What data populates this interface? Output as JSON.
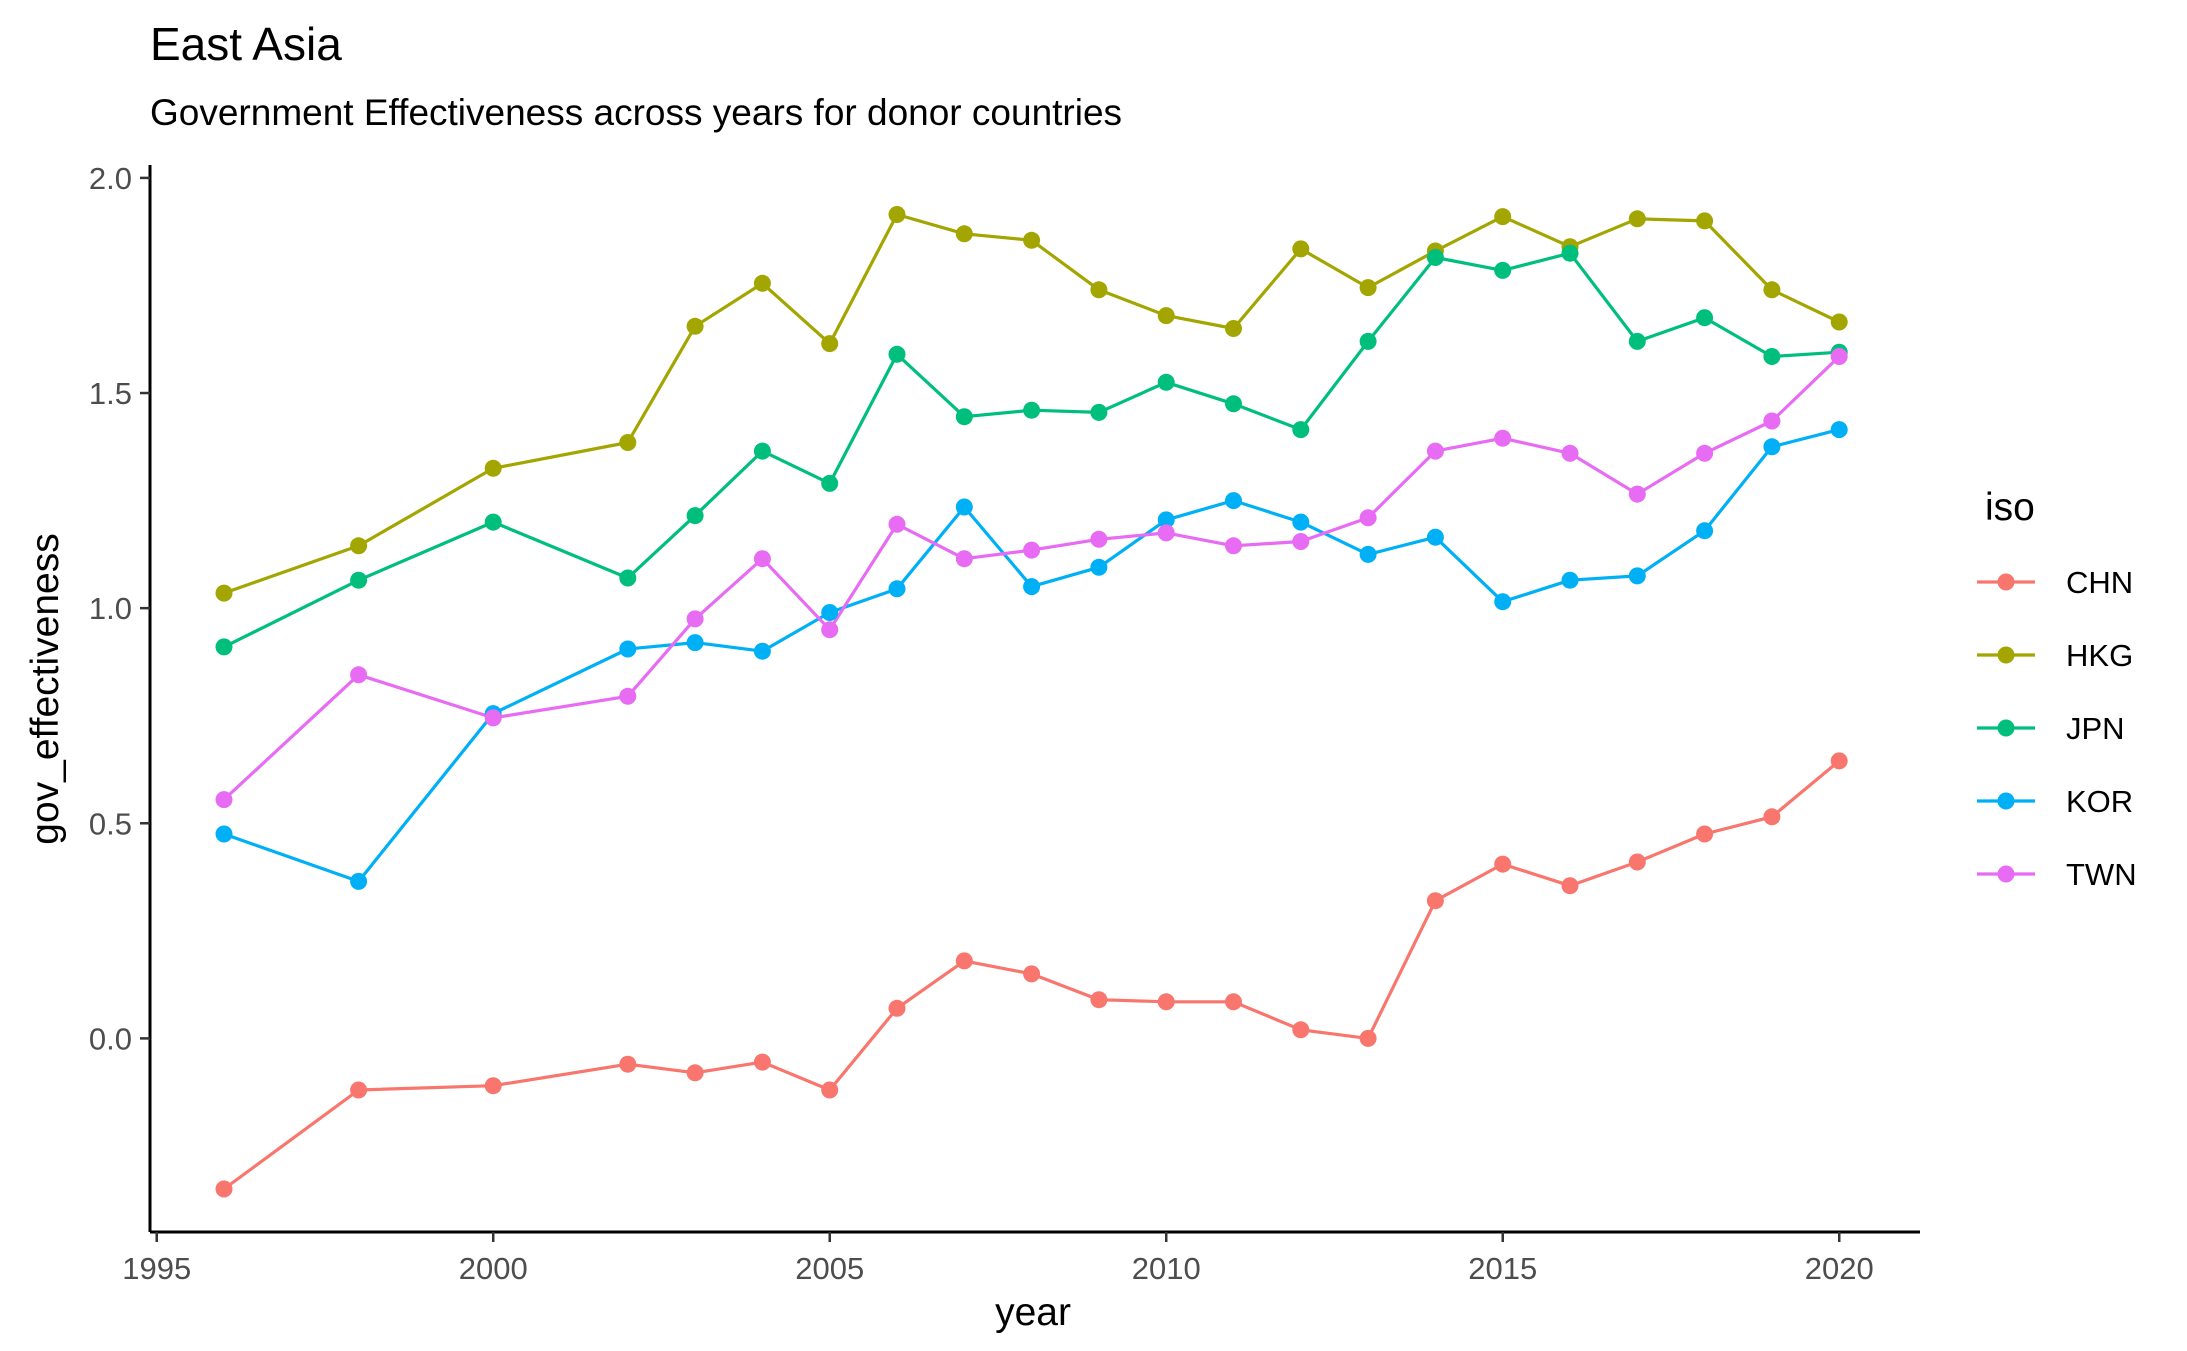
{
  "chart_data": {
    "type": "line",
    "title": "East Asia",
    "subtitle": "Government Effectiveness across years for donor countries",
    "xlabel": "year",
    "ylabel": "gov_effectiveness",
    "xlim": [
      1994.9,
      2021.2
    ],
    "ylim": [
      -0.45,
      2.03
    ],
    "x_ticks": [
      1995,
      2000,
      2005,
      2010,
      2015,
      2020
    ],
    "x_tick_labels": [
      "1995",
      "2000",
      "2005",
      "2010",
      "2015",
      "2020"
    ],
    "y_ticks": [
      0.0,
      0.5,
      1.0,
      1.5,
      2.0
    ],
    "y_tick_labels": [
      "0.0",
      "0.5",
      "1.0",
      "1.5",
      "2.0"
    ],
    "grid": false,
    "legend": {
      "title": "iso",
      "position": "right"
    },
    "x": [
      1996,
      1998,
      2000,
      2002,
      2003,
      2004,
      2005,
      2006,
      2007,
      2008,
      2009,
      2010,
      2011,
      2012,
      2013,
      2014,
      2015,
      2016,
      2017,
      2018,
      2019,
      2020
    ],
    "series": [
      {
        "name": "CHN",
        "color": "#F8766D",
        "values": [
          -0.35,
          -0.12,
          -0.11,
          -0.06,
          -0.08,
          -0.055,
          -0.12,
          0.07,
          0.18,
          0.15,
          0.09,
          0.085,
          0.085,
          0.02,
          0.0,
          0.32,
          0.405,
          0.355,
          0.41,
          0.475,
          0.515,
          0.645
        ]
      },
      {
        "name": "HKG",
        "color": "#A3A500",
        "values": [
          1.035,
          1.145,
          1.325,
          1.385,
          1.655,
          1.755,
          1.615,
          1.915,
          1.87,
          1.855,
          1.74,
          1.68,
          1.65,
          1.835,
          1.745,
          1.83,
          1.91,
          1.84,
          1.905,
          1.9,
          1.74,
          1.665
        ]
      },
      {
        "name": "JPN",
        "color": "#00BF7D",
        "values": [
          0.91,
          1.065,
          1.2,
          1.07,
          1.215,
          1.365,
          1.29,
          1.59,
          1.445,
          1.46,
          1.455,
          1.525,
          1.475,
          1.415,
          1.62,
          1.815,
          1.785,
          1.825,
          1.62,
          1.675,
          1.585,
          1.595
        ]
      },
      {
        "name": "KOR",
        "color": "#00B0F6",
        "values": [
          0.475,
          0.365,
          0.755,
          0.905,
          0.92,
          0.9,
          0.99,
          1.045,
          1.235,
          1.05,
          1.095,
          1.205,
          1.25,
          1.2,
          1.125,
          1.165,
          1.015,
          1.065,
          1.075,
          1.18,
          1.375,
          1.415
        ]
      },
      {
        "name": "TWN",
        "color": "#E76BF3",
        "values": [
          0.555,
          0.845,
          0.745,
          0.795,
          0.975,
          1.115,
          0.95,
          1.195,
          1.115,
          1.135,
          1.16,
          1.175,
          1.145,
          1.155,
          1.21,
          1.365,
          1.395,
          1.36,
          1.265,
          1.36,
          1.435,
          1.585
        ]
      }
    ]
  }
}
